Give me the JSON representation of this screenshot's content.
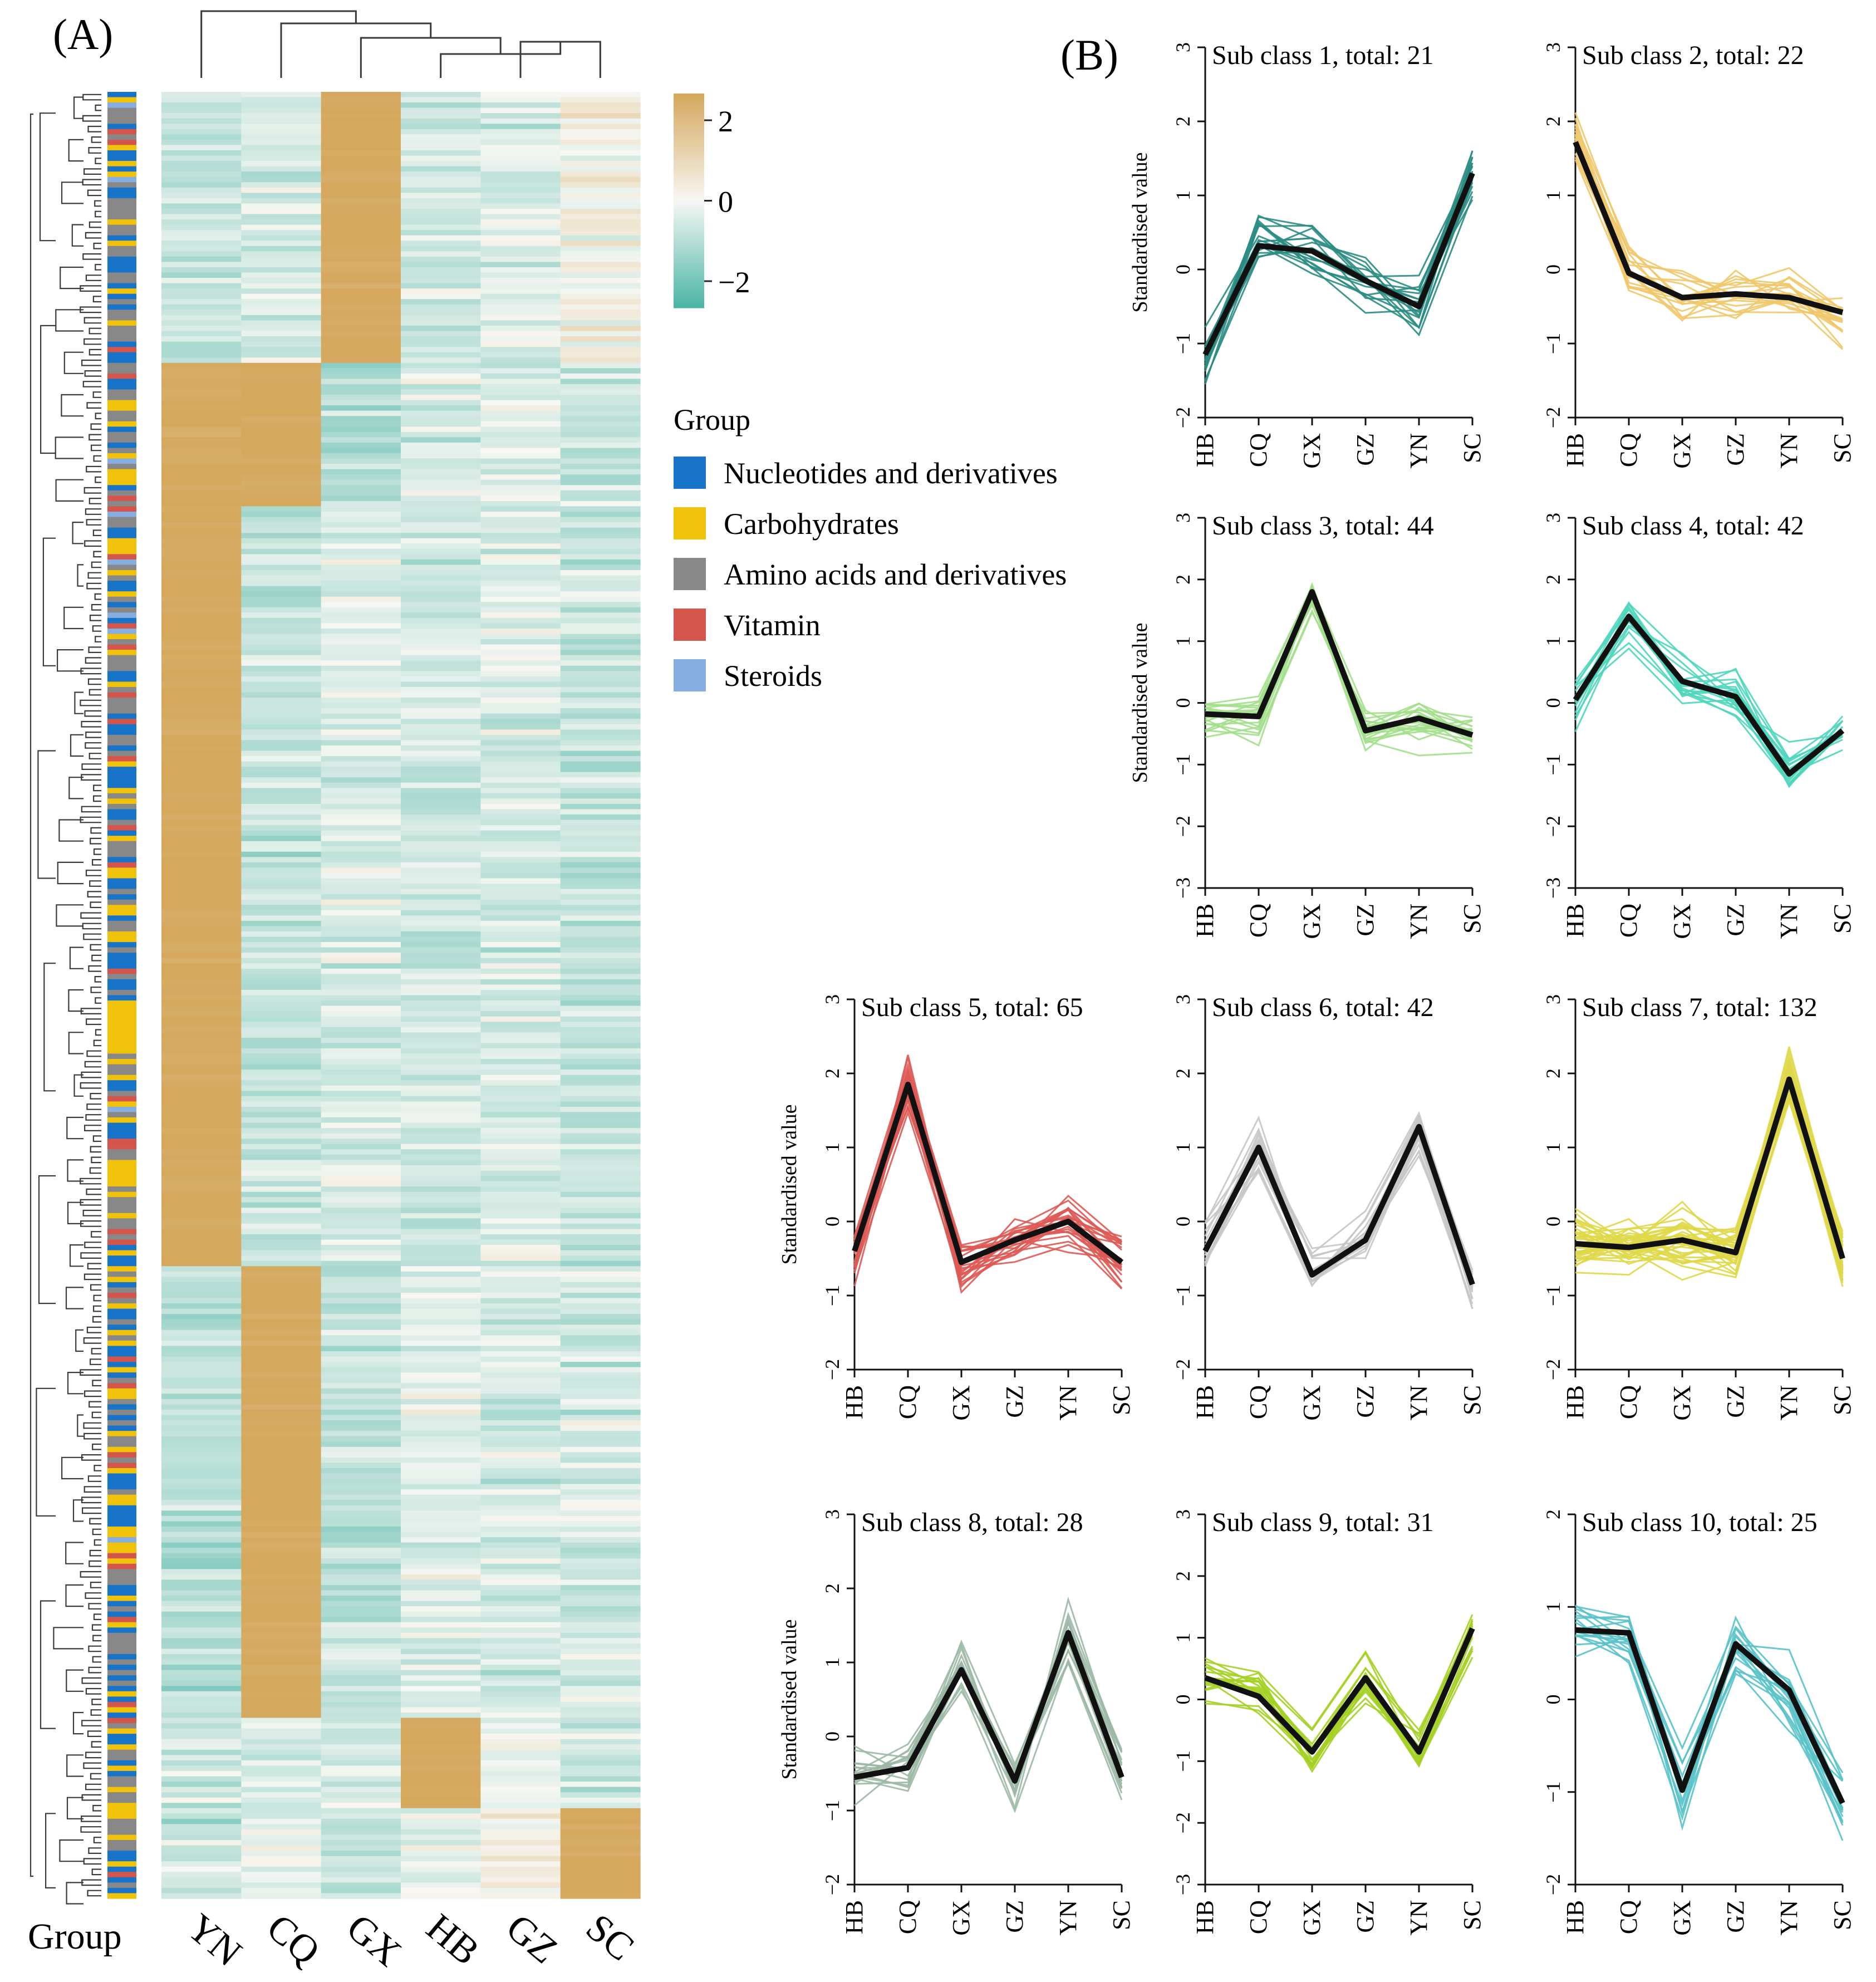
{
  "panels": {
    "a": "(A)",
    "b": "(B)"
  },
  "heatmap": {
    "columns": [
      "YN",
      "CQ",
      "GX",
      "HB",
      "GZ",
      "SC"
    ],
    "group_axis_label": "Group",
    "colorbar": {
      "ticks": [
        "2",
        "0",
        "−2"
      ],
      "range": [
        -2,
        2
      ],
      "low_color": "#4bb5a6",
      "mid_color": "#f7f7f3",
      "high_color": "#d5a85e"
    },
    "legend": {
      "title": "Group",
      "items": [
        {
          "label": "Nucleotides and derivatives",
          "color": "#1874c8"
        },
        {
          "label": "Carbohydrates",
          "color": "#f0c20a"
        },
        {
          "label": "Amino acids and derivatives",
          "color": "#888888"
        },
        {
          "label": "Vitamin",
          "color": "#d4554c"
        },
        {
          "label": "Steroids",
          "color": "#86aee0"
        }
      ]
    }
  },
  "chart_data": [
    {
      "type": "heatmap",
      "columns": [
        "YN",
        "CQ",
        "GX",
        "HB",
        "GZ",
        "SC"
      ],
      "column_dendrogram_order": [
        "YN",
        "CQ",
        "GX",
        "HB",
        "GZ",
        "SC"
      ],
      "row_blocks": [
        {
          "rows_fraction": 0.15,
          "dominant_high": "GX",
          "note_values": [
            -0.6,
            -0.4,
            2,
            -0.5,
            -0.3,
            0.2
          ]
        },
        {
          "rows_fraction": 0.08,
          "dominant_high": [
            "YN",
            "CQ"
          ],
          "note_values": [
            2,
            2,
            -0.8,
            -0.4,
            -0.3,
            -0.6
          ]
        },
        {
          "rows_fraction": 0.42,
          "dominant_high": "YN",
          "note_values": [
            2,
            -0.6,
            -0.3,
            -0.5,
            -0.4,
            -0.6
          ]
        },
        {
          "rows_fraction": 0.25,
          "dominant_high": "CQ",
          "note_values": [
            -0.7,
            2,
            -0.6,
            -0.2,
            -0.4,
            -0.4
          ]
        },
        {
          "rows_fraction": 0.05,
          "dominant_high": "HB",
          "note_values": [
            -0.5,
            -0.4,
            -0.5,
            2,
            -0.2,
            -0.6
          ]
        },
        {
          "rows_fraction": 0.05,
          "dominant_high": "SC",
          "note_values": [
            -0.6,
            -0.2,
            -0.6,
            -0.1,
            0.2,
            2
          ]
        }
      ],
      "color_range": [
        -2,
        2
      ],
      "legend": [
        "Nucleotides and derivatives",
        "Carbohydrates",
        "Amino acids and derivatives",
        "Vitamin",
        "Steroids"
      ]
    },
    {
      "type": "line",
      "ylabel": "Standardised value",
      "x": [
        "HB",
        "CQ",
        "GX",
        "GZ",
        "YN",
        "SC"
      ],
      "subclasses": [
        {
          "title": "Sub class 1, total: 21",
          "color": "#2a8c82",
          "ylim": [
            -2,
            3
          ],
          "yticks": [
            -2,
            -1,
            0,
            1,
            2,
            3
          ],
          "show_ylabel": true,
          "mean": [
            -1.15,
            0.32,
            0.25,
            -0.15,
            -0.5,
            1.3
          ]
        },
        {
          "title": "Sub class 2, total: 22",
          "color": "#efc86a",
          "ylim": [
            -2,
            3
          ],
          "yticks": [
            -2,
            -1,
            0,
            1,
            2,
            3
          ],
          "show_ylabel": false,
          "mean": [
            1.72,
            -0.05,
            -0.38,
            -0.33,
            -0.38,
            -0.58
          ]
        },
        {
          "title": "Sub class 3, total: 44",
          "color": "#a2df8a",
          "ylim": [
            -3,
            3
          ],
          "yticks": [
            -3,
            -2,
            -1,
            0,
            1,
            2,
            3
          ],
          "show_ylabel": true,
          "mean": [
            -0.18,
            -0.22,
            1.8,
            -0.45,
            -0.25,
            -0.52
          ]
        },
        {
          "title": "Sub class 4, total: 42",
          "color": "#4fd6bb",
          "ylim": [
            -3,
            3
          ],
          "yticks": [
            -3,
            -2,
            -1,
            0,
            1,
            2,
            3
          ],
          "show_ylabel": false,
          "mean": [
            0.05,
            1.4,
            0.35,
            0.1,
            -1.15,
            -0.45
          ]
        },
        {
          "title": "Sub class 5, total: 65",
          "color": "#dd5a55",
          "ylim": [
            -2,
            3
          ],
          "yticks": [
            -2,
            -1,
            0,
            1,
            2,
            3
          ],
          "show_ylabel": true,
          "mean": [
            -0.4,
            1.85,
            -0.55,
            -0.25,
            0.0,
            -0.55
          ]
        },
        {
          "title": "Sub class 6, total: 42",
          "color": "#c7c7c7",
          "ylim": [
            -2,
            3
          ],
          "yticks": [
            -2,
            -1,
            0,
            1,
            2,
            3
          ],
          "show_ylabel": false,
          "mean": [
            -0.4,
            1.0,
            -0.72,
            -0.25,
            1.28,
            -0.85
          ]
        },
        {
          "title": "Sub class 7, total: 132",
          "color": "#dfd84a",
          "ylim": [
            -2,
            3
          ],
          "yticks": [
            -2,
            -1,
            0,
            1,
            2,
            3
          ],
          "show_ylabel": false,
          "mean": [
            -0.3,
            -0.35,
            -0.25,
            -0.42,
            1.92,
            -0.5
          ]
        },
        {
          "title": "Sub class 8, total: 28",
          "color": "#9cb8a5",
          "ylim": [
            -2,
            3
          ],
          "yticks": [
            -2,
            -1,
            0,
            1,
            2,
            3
          ],
          "show_ylabel": true,
          "mean": [
            -0.55,
            -0.42,
            0.9,
            -0.6,
            1.4,
            -0.55
          ]
        },
        {
          "title": "Sub class 9, total: 31",
          "color": "#a4d024",
          "ylim": [
            -3,
            3
          ],
          "yticks": [
            -3,
            -2,
            -1,
            0,
            1,
            2,
            3
          ],
          "show_ylabel": false,
          "mean": [
            0.35,
            0.05,
            -0.85,
            0.35,
            -0.85,
            1.15
          ]
        },
        {
          "title": "Sub class 10, total: 25",
          "color": "#58c2c8",
          "ylim": [
            -2,
            2
          ],
          "yticks": [
            -2,
            -1,
            0,
            1,
            2
          ],
          "show_ylabel": false,
          "mean": [
            0.75,
            0.72,
            -0.98,
            0.6,
            0.1,
            -1.12
          ]
        }
      ]
    }
  ]
}
